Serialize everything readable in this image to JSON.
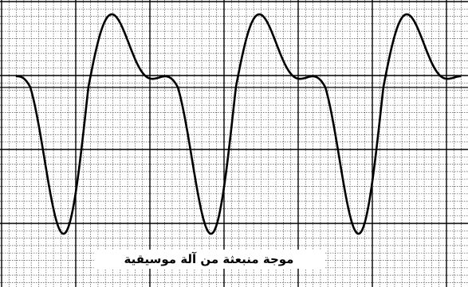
{
  "figure": {
    "caption": "موجة منبعثة من آلة موسيقية"
  },
  "colors": {
    "background": "#ffffff",
    "grid_minor": "#555555",
    "grid_major": "#000000",
    "waveform": "#000000"
  },
  "waveform": {
    "periods": 3
  }
}
